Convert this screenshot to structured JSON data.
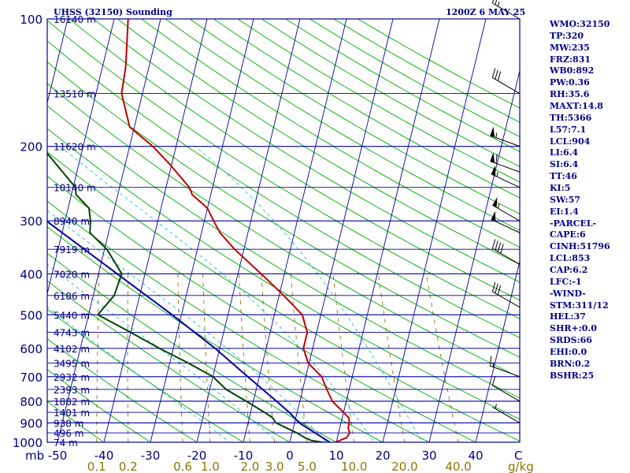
{
  "title_left": "UHSS (32150) Sounding",
  "title_right": "1200Z  6 MAY 25",
  "chart_data": {
    "type": "line",
    "diagram": "skew-T log-p",
    "pressure_axis_label": "mb",
    "pressure_levels": [
      100,
      200,
      300,
      400,
      500,
      600,
      700,
      800,
      900,
      1000
    ],
    "temperature_ticks": [
      "-50",
      "-40",
      "-30",
      "-20",
      "-10",
      "0",
      "10",
      "20",
      "30",
      "40"
    ],
    "temperature_unit": "C",
    "mixing_ratio_ticks": [
      "0.1",
      "0.2",
      "0.6",
      "1.0",
      "2.0",
      "3.0",
      "5.0",
      "10.0",
      "20.0",
      "40.0"
    ],
    "mixing_ratio_unit": "g/kg",
    "heights": [
      {
        "p": 100,
        "label": "16140 m"
      },
      {
        "p": 150,
        "label": "13510 m"
      },
      {
        "p": 200,
        "label": "11620 m"
      },
      {
        "p": 250,
        "label": "10140 m"
      },
      {
        "p": 300,
        "label": "8940 m"
      },
      {
        "p": 350,
        "label": "7919 m"
      },
      {
        "p": 400,
        "label": "7020 m"
      },
      {
        "p": 450,
        "label": "6186 m"
      },
      {
        "p": 500,
        "label": "5440 m"
      },
      {
        "p": 550,
        "label": "4743 m"
      },
      {
        "p": 600,
        "label": "4102 m"
      },
      {
        "p": 650,
        "label": "3495 m"
      },
      {
        "p": 700,
        "label": "2932 m"
      },
      {
        "p": 750,
        "label": "2393 m"
      },
      {
        "p": 800,
        "label": "1882 m"
      },
      {
        "p": 850,
        "label": "1401 m"
      },
      {
        "p": 900,
        "label": "938 m"
      },
      {
        "p": 950,
        "label": "496 m"
      },
      {
        "p": 1000,
        "label": "74 m"
      }
    ],
    "temperature_profile": [
      [
        1008,
        9.2
      ],
      [
        975,
        12.0
      ],
      [
        950,
        12.4
      ],
      [
        925,
        11.8
      ],
      [
        900,
        11.8
      ],
      [
        875,
        11.4
      ],
      [
        850,
        10.0
      ],
      [
        800,
        7.0
      ],
      [
        750,
        5.2
      ],
      [
        700,
        3.4
      ],
      [
        650,
        -0.2
      ],
      [
        600,
        -2.0
      ],
      [
        550,
        -2.0
      ],
      [
        500,
        -4.0
      ],
      [
        450,
        -9.0
      ],
      [
        400,
        -15.0
      ],
      [
        350,
        -22.0
      ],
      [
        320,
        -26.0
      ],
      [
        300,
        -28.0
      ],
      [
        280,
        -30.0
      ],
      [
        260,
        -34.0
      ],
      [
        250,
        -35.0
      ],
      [
        220,
        -40.5
      ],
      [
        200,
        -45.0
      ],
      [
        180,
        -51.0
      ],
      [
        150,
        -54.5
      ],
      [
        130,
        -55.0
      ],
      [
        100,
        -57.0
      ]
    ],
    "dewpoint_profile": [
      [
        1008,
        9.2
      ],
      [
        990,
        4.5
      ],
      [
        975,
        3.0
      ],
      [
        950,
        1.0
      ],
      [
        925,
        -1.5
      ],
      [
        900,
        -4.0
      ],
      [
        875,
        -5.0
      ],
      [
        850,
        -7.0
      ],
      [
        800,
        -11.5
      ],
      [
        750,
        -16.5
      ],
      [
        700,
        -20.0
      ],
      [
        650,
        -26.0
      ],
      [
        600,
        -33.0
      ],
      [
        550,
        -40.0
      ],
      [
        500,
        -48.0
      ],
      [
        450,
        -45.5
      ],
      [
        400,
        -45.0
      ],
      [
        350,
        -49.5
      ],
      [
        320,
        -54.0
      ],
      [
        300,
        -54.5
      ],
      [
        280,
        -55.5
      ],
      [
        260,
        -59.0
      ],
      [
        250,
        -59.5
      ],
      [
        200,
        -69.0
      ],
      [
        150,
        -76.0
      ],
      [
        130,
        -77.0
      ],
      [
        100,
        -79.0
      ]
    ],
    "parcel_profile": [
      [
        1008,
        9.2
      ],
      [
        900,
        1.0
      ],
      [
        853,
        -1.5
      ],
      [
        800,
        -5.0
      ],
      [
        700,
        -12.5
      ],
      [
        600,
        -21.0
      ],
      [
        500,
        -32.0
      ],
      [
        400,
        -46.0
      ],
      [
        300,
        -64.0
      ],
      [
        250,
        -74.0
      ],
      [
        200,
        -84.0
      ],
      [
        150,
        -98.0
      ],
      [
        100,
        -118.0
      ]
    ],
    "series": [
      {
        "name": "temperature",
        "color": "#c00000"
      },
      {
        "name": "dewpoint",
        "color": "#004400"
      },
      {
        "name": "parcel",
        "color": "#0000a0"
      }
    ],
    "wind_barbs": [
      {
        "p": 100,
        "dir": 300,
        "kt": 25
      },
      {
        "p": 150,
        "dir": 300,
        "kt": 30
      },
      {
        "p": 200,
        "dir": 290,
        "kt": 55
      },
      {
        "p": 230,
        "dir": 290,
        "kt": 60
      },
      {
        "p": 250,
        "dir": 295,
        "kt": 55
      },
      {
        "p": 300,
        "dir": 300,
        "kt": 55
      },
      {
        "p": 320,
        "dir": 295,
        "kt": 50
      },
      {
        "p": 380,
        "dir": 300,
        "kt": 40
      },
      {
        "p": 480,
        "dir": 300,
        "kt": 30
      },
      {
        "p": 700,
        "dir": 290,
        "kt": 15
      },
      {
        "p": 800,
        "dir": 300,
        "kt": 10
      },
      {
        "p": 900,
        "dir": 300,
        "kt": 5
      }
    ],
    "colors": {
      "isobar": "#0000a0",
      "isotherm": "#0000a0",
      "dry_adiabat": "#00aa00",
      "moist_adiabat": "#22bbcc",
      "mixing_ratio": "#8b7500",
      "temperature": "#c00000",
      "dewpoint": "#004400",
      "parcel": "#0000a0"
    }
  },
  "indices": [
    "WMO:32150",
    "TP:320",
    "MW:235",
    "FRZ:831",
    "WB0:892",
    "PW:0.36",
    "RH:35.6",
    "MAXT:14.8",
    "TH:5366",
    "L57:7.1",
    "LCL:904",
    "LI:6.4",
    "SI:6.4",
    "TT:46",
    "KI:5",
    "SW:57",
    "EI:1.4",
    "-PARCEL-",
    "CAPE:6",
    "CINH:51796",
    "LCL:853",
    "CAP:6.2",
    "LFC:-1",
    "-WIND-",
    "STM:311/12",
    "HEL:37",
    "SHR+:0.0",
    "SRDS:66",
    "EHI:0.0",
    "BRN:0.2",
    "BSHR:25"
  ]
}
